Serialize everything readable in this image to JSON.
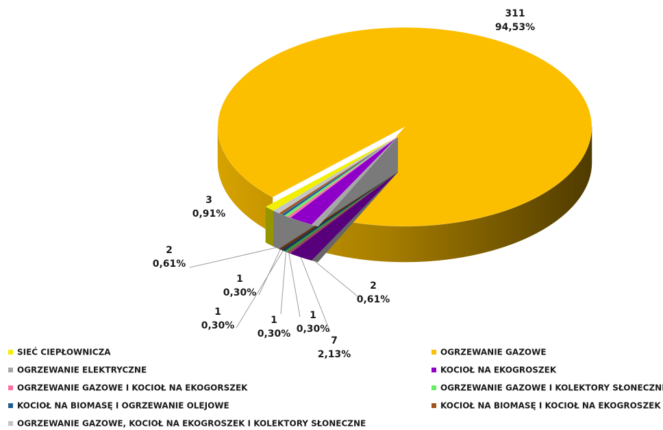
{
  "chart_data": {
    "type": "pie3d",
    "categories": [
      "SIEĆ CIEPŁOWNICZA",
      "OGRZEWANIE GAZOWE",
      "OGRZEWANIE ELEKTRYCZNE",
      "KOCIOŁ NA EKOGROSZEK",
      "OGRZEWANIE GAZOWE I KOCIOŁ NA EKOGORSZEK",
      "OGRZEWANIE GAZOWE I KOLEKTORY SŁONECZNE",
      "KOCIOŁ NA BIOMASĘ I OGRZEWANIE OLEJOWE",
      "KOCIOŁ NA BIOMASĘ I KOCIOŁ NA  EKOGROSZEK",
      "OGRZEWANIE GAZOWE, KOCIOŁ NA EKOGROSZEK I KOLEKTORY SŁONECZNE"
    ],
    "values": [
      3,
      311,
      2,
      7,
      1,
      1,
      1,
      1,
      2
    ],
    "percent_labels": [
      "0,91%",
      "94,53%",
      "0,61%",
      "2,13%",
      "0,30%",
      "0,30%",
      "0,30%",
      "0,30%",
      "0,61%"
    ],
    "colors": [
      "#f0f000",
      "#fcbf00",
      "#a6a6a6",
      "#8e00c8",
      "#ff6f9c",
      "#66ee66",
      "#1f5c94",
      "#a0521e",
      "#c4c4c4"
    ],
    "legend": "bottom"
  }
}
